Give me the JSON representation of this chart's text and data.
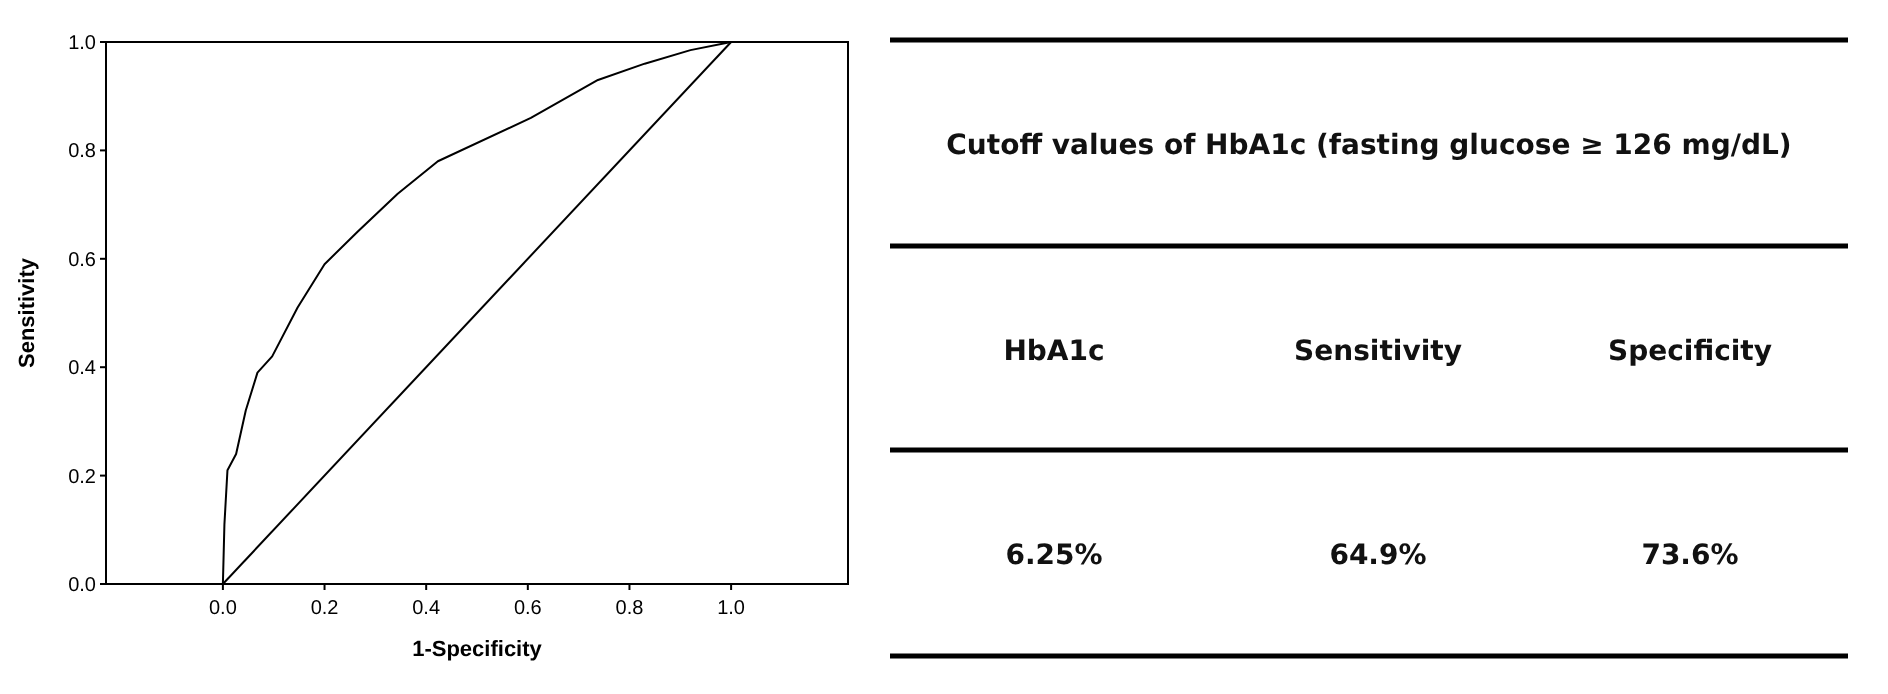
{
  "chart_data": [
    {
      "type": "line",
      "xlabel": "1-Specificity",
      "ylabel": "Sensitivity",
      "xlim": [
        -0.23,
        1.23
      ],
      "ylim": [
        0,
        1
      ],
      "xticks": [
        {
          "value": 0,
          "label": "0.0"
        },
        0.2,
        0.4,
        0.6,
        0.8,
        {
          "value": 1,
          "label": "1.0"
        }
      ],
      "yticks": [
        {
          "value": 0,
          "label": "0.0"
        },
        0.2,
        0.4,
        0.6,
        0.8,
        {
          "value": 1,
          "label": "1.0"
        }
      ],
      "grid": false,
      "marker": "none",
      "line_style": "solid",
      "series": [
        {
          "color": "#000000",
          "x": [
            0,
            0.003,
            0.009,
            0.026,
            0.045,
            0.068,
            0.097,
            0.147,
            0.2,
            0.265,
            0.344,
            0.423,
            0.606,
            0.738,
            0.83,
            0.92,
            1
          ],
          "values": [
            0,
            0.11,
            0.21,
            0.24,
            0.32,
            0.39,
            0.42,
            0.51,
            0.59,
            0.65,
            0.72,
            0.78,
            0.86,
            0.93,
            0.96,
            0.985,
            1
          ]
        },
        {
          "color": "#000000",
          "x": [
            0,
            1
          ],
          "values": [
            0,
            1
          ]
        }
      ]
    },
    {
      "type": "other",
      "title": "Cutoff values of HbA1c (fasting glucose ≥ 126 mg/dL)",
      "categories": [
        "HbA1c",
        "Sensitivity",
        "Specificity"
      ],
      "annotations": [
        "6.25%",
        "64.9%",
        "73.6%"
      ]
    }
  ]
}
